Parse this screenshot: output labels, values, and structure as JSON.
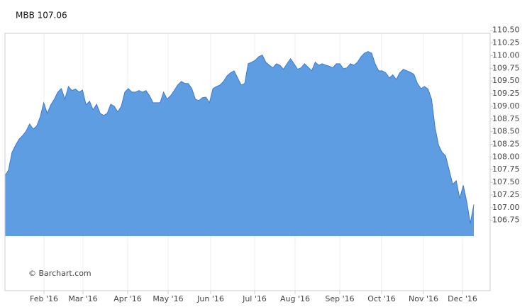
{
  "chart_data": {
    "type": "area",
    "title": "MBB 107.06",
    "watermark": "© Barchart.com",
    "x_labels": [
      "Feb '16",
      "Mar '16",
      "Apr '16",
      "May '16",
      "Jun '16",
      "Jul '16",
      "Aug '16",
      "Sep '16",
      "Oct '16",
      "Nov '16",
      "Dec '16"
    ],
    "values": [
      107.63,
      107.74,
      108.09,
      108.23,
      108.35,
      108.42,
      108.51,
      108.65,
      108.55,
      108.61,
      108.79,
      109.07,
      108.86,
      109.03,
      109.14,
      109.28,
      109.35,
      109.14,
      109.39,
      109.31,
      109.34,
      109.28,
      109.32,
      109.03,
      109.1,
      108.93,
      109.04,
      108.86,
      108.82,
      108.86,
      109.04,
      109.0,
      108.89,
      109.0,
      109.28,
      109.35,
      109.28,
      109.28,
      109.31,
      109.28,
      109.31,
      109.21,
      109.07,
      109.07,
      109.07,
      109.28,
      109.14,
      109.21,
      109.31,
      109.42,
      109.49,
      109.45,
      109.45,
      109.35,
      109.14,
      109.11,
      109.17,
      109.18,
      109.07,
      109.35,
      109.39,
      109.42,
      109.49,
      109.6,
      109.66,
      109.7,
      109.56,
      109.42,
      109.45,
      109.84,
      109.87,
      109.91,
      109.98,
      110.01,
      109.87,
      109.81,
      109.76,
      109.84,
      109.81,
      109.73,
      109.84,
      109.94,
      109.84,
      109.73,
      109.76,
      109.84,
      109.77,
      109.7,
      109.87,
      109.81,
      109.84,
      109.81,
      109.79,
      109.76,
      109.84,
      109.84,
      109.74,
      109.76,
      109.84,
      109.81,
      109.87,
      109.98,
      110.05,
      110.08,
      110.05,
      109.84,
      109.7,
      109.7,
      109.66,
      109.56,
      109.62,
      109.53,
      109.66,
      109.73,
      109.7,
      109.67,
      109.63,
      109.45,
      109.35,
      109.39,
      109.34,
      109.14,
      108.58,
      108.23,
      108.09,
      108.02,
      107.74,
      107.46,
      107.53,
      107.18,
      107.44,
      107.11,
      106.69,
      107.06
    ],
    "color": "#5f9de2",
    "line_color": "#3d7ccc",
    "ylim": [
      105.36,
      110.44
    ],
    "yticks": [
      106.75,
      {
        "value": 107,
        "label": "107.00"
      },
      107.25,
      {
        "value": 107.5,
        "label": "107.50"
      },
      107.75,
      {
        "value": 108,
        "label": "108.00"
      },
      108.25,
      {
        "value": 108.5,
        "label": "108.50"
      },
      108.75,
      {
        "value": 109,
        "label": "109.00"
      },
      109.25,
      {
        "value": 109.5,
        "label": "109.50"
      },
      109.75,
      {
        "value": 110,
        "label": "110.00"
      },
      110.25,
      {
        "value": 110.5,
        "label": "110.50"
      }
    ],
    "grid": true
  }
}
